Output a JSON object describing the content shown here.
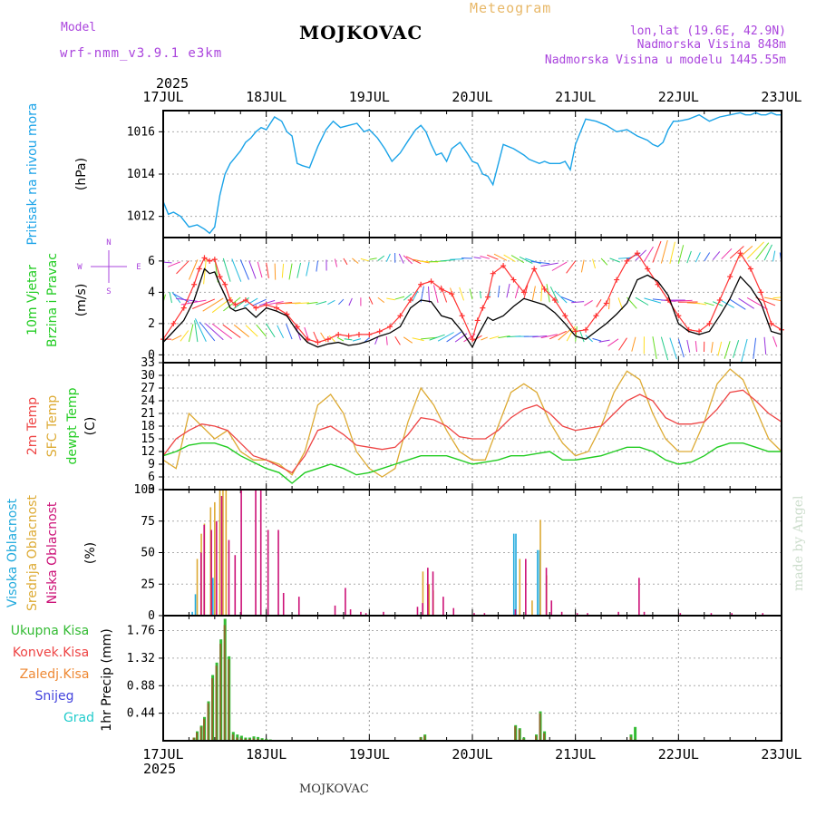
{
  "header": {
    "model_label": "Model",
    "model_name": "wrf-nmm_v3.9.1 e3km",
    "station_title": "MOJKOVAC",
    "product": "Meteogram",
    "lonlat": "lon,lat (19.6E, 42.9N)",
    "elevation": "Nadmorska Visina 848m",
    "model_elevation": "Nadmorska Visina u modelu 1445.55m",
    "footer_station": "MOJKOVAC",
    "credit": "made by Angel"
  },
  "time_axis": {
    "year": "2025",
    "labels": [
      "17JUL",
      "18JUL",
      "19JUL",
      "20JUL",
      "21JUL",
      "22JUL",
      "23JUL"
    ]
  },
  "colors": {
    "pressure": "#1aa3e8",
    "wind_speed": "#000000",
    "gust": "#ff3333",
    "temp2m": "#ee4444",
    "sfctemp": "#ddaa33",
    "dewpt": "#22cc22",
    "high_cloud": "#22aadd",
    "mid_cloud": "#ddaa33",
    "low_cloud": "#cc1177",
    "total_precip": "#33bb33",
    "conv_precip": "#ee4444",
    "frz_precip": "#ee8833",
    "snow": "#4444dd",
    "graupel": "#22cccc",
    "model_text": "#aa44dd",
    "product_text": "#e8b868"
  },
  "chart_data": [
    {
      "type": "line",
      "name": "pressure",
      "ylabel_lines": [
        "Pritisak na nivou mora"
      ],
      "unit": "(hPa)",
      "ylim": [
        1011,
        1017
      ],
      "yticks": [
        1012,
        1014,
        1016
      ],
      "x_days": [
        0,
        0.05,
        0.1,
        0.17,
        0.25,
        0.33,
        0.4,
        0.45,
        0.5,
        0.55,
        0.6,
        0.65,
        0.7,
        0.75,
        0.8,
        0.85,
        0.9,
        0.95,
        1.0,
        1.08,
        1.15,
        1.2,
        1.25,
        1.3,
        1.35,
        1.42,
        1.5,
        1.58,
        1.65,
        1.72,
        1.8,
        1.88,
        1.95,
        2.0,
        2.08,
        2.15,
        2.22,
        2.3,
        2.38,
        2.45,
        2.5,
        2.55,
        2.6,
        2.65,
        2.7,
        2.75,
        2.8,
        2.88,
        2.95,
        3.0,
        3.05,
        3.1,
        3.15,
        3.2,
        3.3,
        3.4,
        3.5,
        3.55,
        3.6,
        3.65,
        3.7,
        3.75,
        3.8,
        3.85,
        3.9,
        3.95,
        4.0,
        4.1,
        4.2,
        4.3,
        4.4,
        4.5,
        4.6,
        4.7,
        4.75,
        4.8,
        4.85,
        4.9,
        4.95,
        5.0,
        5.1,
        5.2,
        5.3,
        5.4,
        5.5,
        5.6,
        5.65,
        5.7,
        5.75,
        5.8,
        5.85,
        5.9,
        5.95,
        6.0
      ],
      "values": [
        1012.7,
        1012.1,
        1012.2,
        1012.0,
        1011.5,
        1011.6,
        1011.4,
        1011.2,
        1011.5,
        1013.0,
        1014.0,
        1014.5,
        1014.8,
        1015.1,
        1015.5,
        1015.7,
        1016.0,
        1016.2,
        1016.1,
        1016.7,
        1016.5,
        1016.0,
        1015.8,
        1014.5,
        1014.4,
        1014.3,
        1015.3,
        1016.1,
        1016.5,
        1016.2,
        1016.3,
        1016.4,
        1016.0,
        1016.1,
        1015.7,
        1015.2,
        1014.6,
        1015.0,
        1015.6,
        1016.1,
        1016.3,
        1016.0,
        1015.4,
        1014.9,
        1015.0,
        1014.6,
        1015.2,
        1015.5,
        1015.0,
        1014.6,
        1014.5,
        1014.0,
        1013.9,
        1013.5,
        1015.4,
        1015.2,
        1014.9,
        1014.7,
        1014.6,
        1014.5,
        1014.6,
        1014.5,
        1014.5,
        1014.5,
        1014.6,
        1014.2,
        1015.4,
        1016.6,
        1016.5,
        1016.3,
        1016.0,
        1016.1,
        1015.8,
        1015.6,
        1015.4,
        1015.3,
        1015.5,
        1016.1,
        1016.5,
        1016.5,
        1016.6,
        1016.8,
        1016.5,
        1016.7,
        1016.8,
        1016.9,
        1016.8,
        1016.8,
        1016.9,
        1016.8,
        1016.8,
        1016.9,
        1016.8,
        1016.8
      ]
    },
    {
      "type": "line",
      "name": "wind",
      "ylabel_lines": [
        "10m Vjetar",
        "Brzina i Pravac"
      ],
      "unit": "(m/s)",
      "ylim": [
        -0.5,
        7.5
      ],
      "yticks": [
        0,
        2,
        4,
        6
      ],
      "compass": [
        "N",
        "W",
        "E",
        "S"
      ],
      "x_days": [
        0,
        0.1,
        0.2,
        0.3,
        0.35,
        0.4,
        0.45,
        0.5,
        0.55,
        0.6,
        0.65,
        0.7,
        0.8,
        0.9,
        1.0,
        1.1,
        1.2,
        1.3,
        1.4,
        1.5,
        1.6,
        1.7,
        1.8,
        1.9,
        2.0,
        2.1,
        2.2,
        2.3,
        2.4,
        2.5,
        2.6,
        2.7,
        2.8,
        2.9,
        3.0,
        3.05,
        3.1,
        3.15,
        3.2,
        3.3,
        3.4,
        3.5,
        3.6,
        3.7,
        3.8,
        3.9,
        4.0,
        4.1,
        4.2,
        4.3,
        4.4,
        4.5,
        4.6,
        4.7,
        4.8,
        4.9,
        5.0,
        5.1,
        5.2,
        5.3,
        5.4,
        5.5,
        5.6,
        5.7,
        5.8,
        5.9,
        6.0
      ],
      "speed": [
        0.8,
        1.5,
        2.2,
        3.5,
        4.5,
        5.5,
        5.2,
        5.3,
        4.5,
        3.8,
        3.0,
        2.8,
        3.0,
        2.4,
        3.0,
        2.8,
        2.5,
        1.5,
        0.8,
        0.5,
        0.7,
        0.8,
        0.6,
        0.7,
        0.9,
        1.2,
        1.4,
        1.8,
        3.0,
        3.5,
        3.4,
        2.5,
        2.3,
        1.5,
        0.5,
        1.2,
        1.8,
        2.4,
        2.2,
        2.5,
        3.1,
        3.6,
        3.4,
        3.2,
        2.7,
        2.0,
        1.2,
        1.0,
        1.5,
        2.0,
        2.6,
        3.3,
        4.8,
        5.1,
        4.7,
        3.8,
        2.0,
        1.5,
        1.3,
        1.5,
        2.5,
        3.6,
        5.0,
        4.3,
        3.3,
        1.5,
        1.3
      ],
      "gust": [
        1.0,
        2.0,
        3.0,
        4.5,
        5.5,
        6.2,
        6.0,
        6.1,
        5.0,
        4.5,
        3.5,
        3.2,
        3.5,
        3.0,
        3.2,
        3.0,
        2.6,
        1.8,
        1.0,
        0.8,
        1.0,
        1.3,
        1.2,
        1.3,
        1.3,
        1.5,
        1.8,
        2.5,
        3.5,
        4.5,
        4.7,
        4.2,
        3.9,
        2.5,
        1.0,
        2.2,
        3.0,
        3.7,
        5.2,
        5.7,
        4.8,
        4.0,
        5.5,
        4.2,
        3.5,
        2.5,
        1.5,
        1.6,
        2.5,
        3.3,
        4.8,
        6.0,
        6.5,
        5.5,
        4.5,
        3.5,
        2.5,
        1.6,
        1.5,
        2.0,
        3.5,
        5.0,
        6.5,
        5.5,
        4.0,
        2.0,
        1.6
      ]
    },
    {
      "type": "line",
      "name": "temperature",
      "ylabel_lines": [
        "2m Temp",
        "SFC Temp",
        "dewpt Temp"
      ],
      "unit": "(C)",
      "ylim": [
        3,
        33
      ],
      "yticks": [
        3,
        6,
        9,
        12,
        15,
        18,
        21,
        24,
        27,
        30,
        33
      ],
      "x_days": [
        0,
        0.125,
        0.25,
        0.375,
        0.5,
        0.625,
        0.75,
        0.875,
        1.0,
        1.125,
        1.25,
        1.375,
        1.5,
        1.625,
        1.75,
        1.875,
        2.0,
        2.125,
        2.25,
        2.375,
        2.5,
        2.625,
        2.75,
        2.875,
        3.0,
        3.125,
        3.25,
        3.375,
        3.5,
        3.625,
        3.75,
        3.875,
        4.0,
        4.125,
        4.25,
        4.375,
        4.5,
        4.625,
        4.75,
        4.875,
        5.0,
        5.125,
        5.25,
        5.375,
        5.5,
        5.625,
        5.75,
        5.875,
        6.0
      ],
      "temp2m": [
        11,
        15,
        17,
        18.5,
        18,
        17,
        14,
        11,
        10,
        8.5,
        7,
        11,
        17,
        18,
        16,
        13.5,
        13,
        12.5,
        13,
        16,
        20,
        19.5,
        18,
        15.5,
        15,
        15,
        17,
        20,
        22,
        23,
        21,
        18,
        17,
        17.5,
        18,
        21,
        24,
        25.5,
        24,
        20,
        18.5,
        18.5,
        19,
        22,
        26,
        26.5,
        24,
        21,
        19
      ],
      "sfctemp": [
        10,
        8,
        21,
        18,
        15,
        17,
        12,
        10,
        10,
        9,
        6.5,
        12,
        23,
        25.5,
        21,
        12,
        8,
        6,
        8,
        19,
        27,
        23,
        17,
        12,
        10,
        10,
        18,
        26,
        28,
        26,
        19,
        14,
        11,
        12,
        18,
        26,
        31,
        29,
        21,
        15,
        12,
        12,
        19,
        28,
        31.5,
        29,
        22,
        15,
        12
      ],
      "dewpt": [
        11,
        12,
        13.5,
        14,
        14,
        13,
        11,
        9.5,
        8,
        7,
        4.5,
        7,
        8,
        9,
        8,
        6.5,
        7,
        8,
        9,
        10,
        11,
        11,
        11,
        10,
        9,
        9.5,
        10,
        11,
        11,
        11.5,
        12,
        10,
        10,
        10.5,
        11,
        12,
        13,
        13,
        12,
        10,
        9,
        9.5,
        11,
        13,
        14,
        14,
        13,
        12,
        12
      ]
    },
    {
      "type": "bar",
      "name": "cloud",
      "ylabel_lines": [
        "Visoka Oblacnost",
        "Srednja Oblacnost",
        "Niska Oblacnost"
      ],
      "unit": "(%)",
      "ylim": [
        0,
        100
      ],
      "yticks": [
        0,
        25,
        50,
        75,
        100
      ],
      "series": [
        {
          "name": "high",
          "x_days": [
            0.3,
            0.33,
            0.5,
            3.42,
            3.44,
            3.65,
            3.67
          ],
          "values": [
            3,
            17,
            30,
            65,
            65,
            52,
            52
          ]
        },
        {
          "name": "mid",
          "x_days": [
            0.33,
            0.37,
            0.4,
            0.46,
            0.5,
            0.55,
            0.58,
            0.61,
            2.52,
            2.58,
            2.62,
            3.46,
            3.58,
            3.66,
            3.72
          ],
          "values": [
            45,
            65,
            73,
            86,
            90,
            100,
            100,
            100,
            35,
            25,
            20,
            45,
            12,
            76,
            32
          ]
        },
        {
          "name": "low",
          "x_days": [
            0.35,
            0.38,
            0.45,
            0.5,
            0.55,
            0.62,
            0.68,
            0.74,
            0.88,
            0.93,
            1.0,
            1.1,
            1.15,
            1.3,
            1.65,
            1.75,
            1.8,
            1.9,
            1.95,
            2.12,
            2.45,
            2.5,
            2.55,
            2.6,
            2.7,
            2.8,
            3.0,
            3.1,
            3.4,
            3.5,
            3.7,
            3.75,
            3.85,
            4.0,
            4.1,
            4.4,
            4.6,
            4.65,
            5.0,
            5.3,
            5.5,
            5.8
          ],
          "values": [
            50,
            72,
            68,
            75,
            95,
            60,
            48,
            100,
            100,
            100,
            68,
            68,
            18,
            15,
            8,
            22,
            5,
            3,
            2,
            3,
            7,
            10,
            38,
            35,
            15,
            6,
            2,
            2,
            5,
            45,
            38,
            12,
            3,
            2,
            2,
            3,
            30,
            3,
            2,
            2,
            2,
            2
          ]
        }
      ]
    },
    {
      "type": "bar",
      "name": "precip",
      "ylabel_lines": [
        "1hr Precip (mm)"
      ],
      "legend": [
        "Ukupna Kisa",
        "Konvek.Kisa",
        "Zaledj.Kisa",
        "Snijeg",
        "Grad"
      ],
      "ylim": [
        0,
        2.0
      ],
      "yticks": [
        0.44,
        0.88,
        1.32,
        1.76
      ],
      "x_days": [
        0.3,
        0.33,
        0.37,
        0.4,
        0.44,
        0.48,
        0.52,
        0.56,
        0.6,
        0.64,
        0.68,
        0.72,
        0.76,
        0.8,
        0.84,
        0.88,
        0.92,
        0.96,
        1.0,
        1.04,
        2.5,
        2.54,
        3.42,
        3.46,
        3.5,
        3.62,
        3.66,
        3.7,
        4.54,
        4.58
      ],
      "total": [
        0.05,
        0.15,
        0.24,
        0.38,
        0.63,
        1.05,
        1.25,
        1.62,
        1.95,
        1.35,
        0.14,
        0.1,
        0.08,
        0.05,
        0.05,
        0.07,
        0.06,
        0.04,
        0.03,
        0.02,
        0.06,
        0.1,
        0.25,
        0.2,
        0.05,
        0.1,
        0.47,
        0.15,
        0.1,
        0.22
      ],
      "convective": [
        0.05,
        0.13,
        0.22,
        0.35,
        0.6,
        1.0,
        1.2,
        1.55,
        1.85,
        1.3,
        0.1,
        0.05,
        0.04,
        0.03,
        0.03,
        0.04,
        0.03,
        0.02,
        0.02,
        0.01,
        0.05,
        0.08,
        0.23,
        0.18,
        0.03,
        0.08,
        0.44,
        0.12,
        0.06,
        0.02
      ]
    }
  ]
}
